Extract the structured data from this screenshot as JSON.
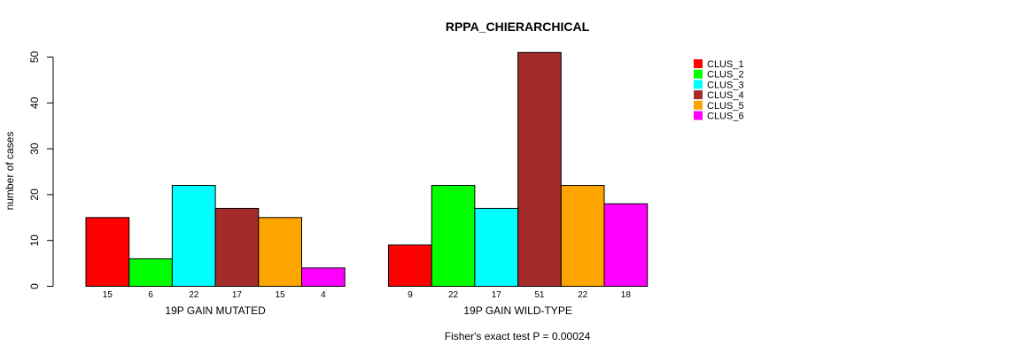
{
  "chart_data": {
    "type": "bar",
    "title": "RPPA_CHIERARCHICAL",
    "ylabel": "number of cases",
    "ylim": [
      0,
      50
    ],
    "yticks": [
      0,
      10,
      20,
      30,
      40,
      50
    ],
    "groups": [
      {
        "label": "19P GAIN MUTATED",
        "values": [
          15,
          6,
          22,
          17,
          15,
          4
        ]
      },
      {
        "label": "19P GAIN WILD-TYPE",
        "values": [
          9,
          22,
          17,
          51,
          22,
          18
        ]
      }
    ],
    "series": [
      {
        "name": "CLUS_1",
        "color": "#ff0000"
      },
      {
        "name": "CLUS_2",
        "color": "#00ff00"
      },
      {
        "name": "CLUS_3",
        "color": "#00ffff"
      },
      {
        "name": "CLUS_4",
        "color": "#a52a2a"
      },
      {
        "name": "CLUS_5",
        "color": "#ffa500"
      },
      {
        "name": "CLUS_6",
        "color": "#ff00ff"
      }
    ],
    "legend_position": "top-right",
    "footnote": "Fisher's exact test P = 0.00024"
  }
}
